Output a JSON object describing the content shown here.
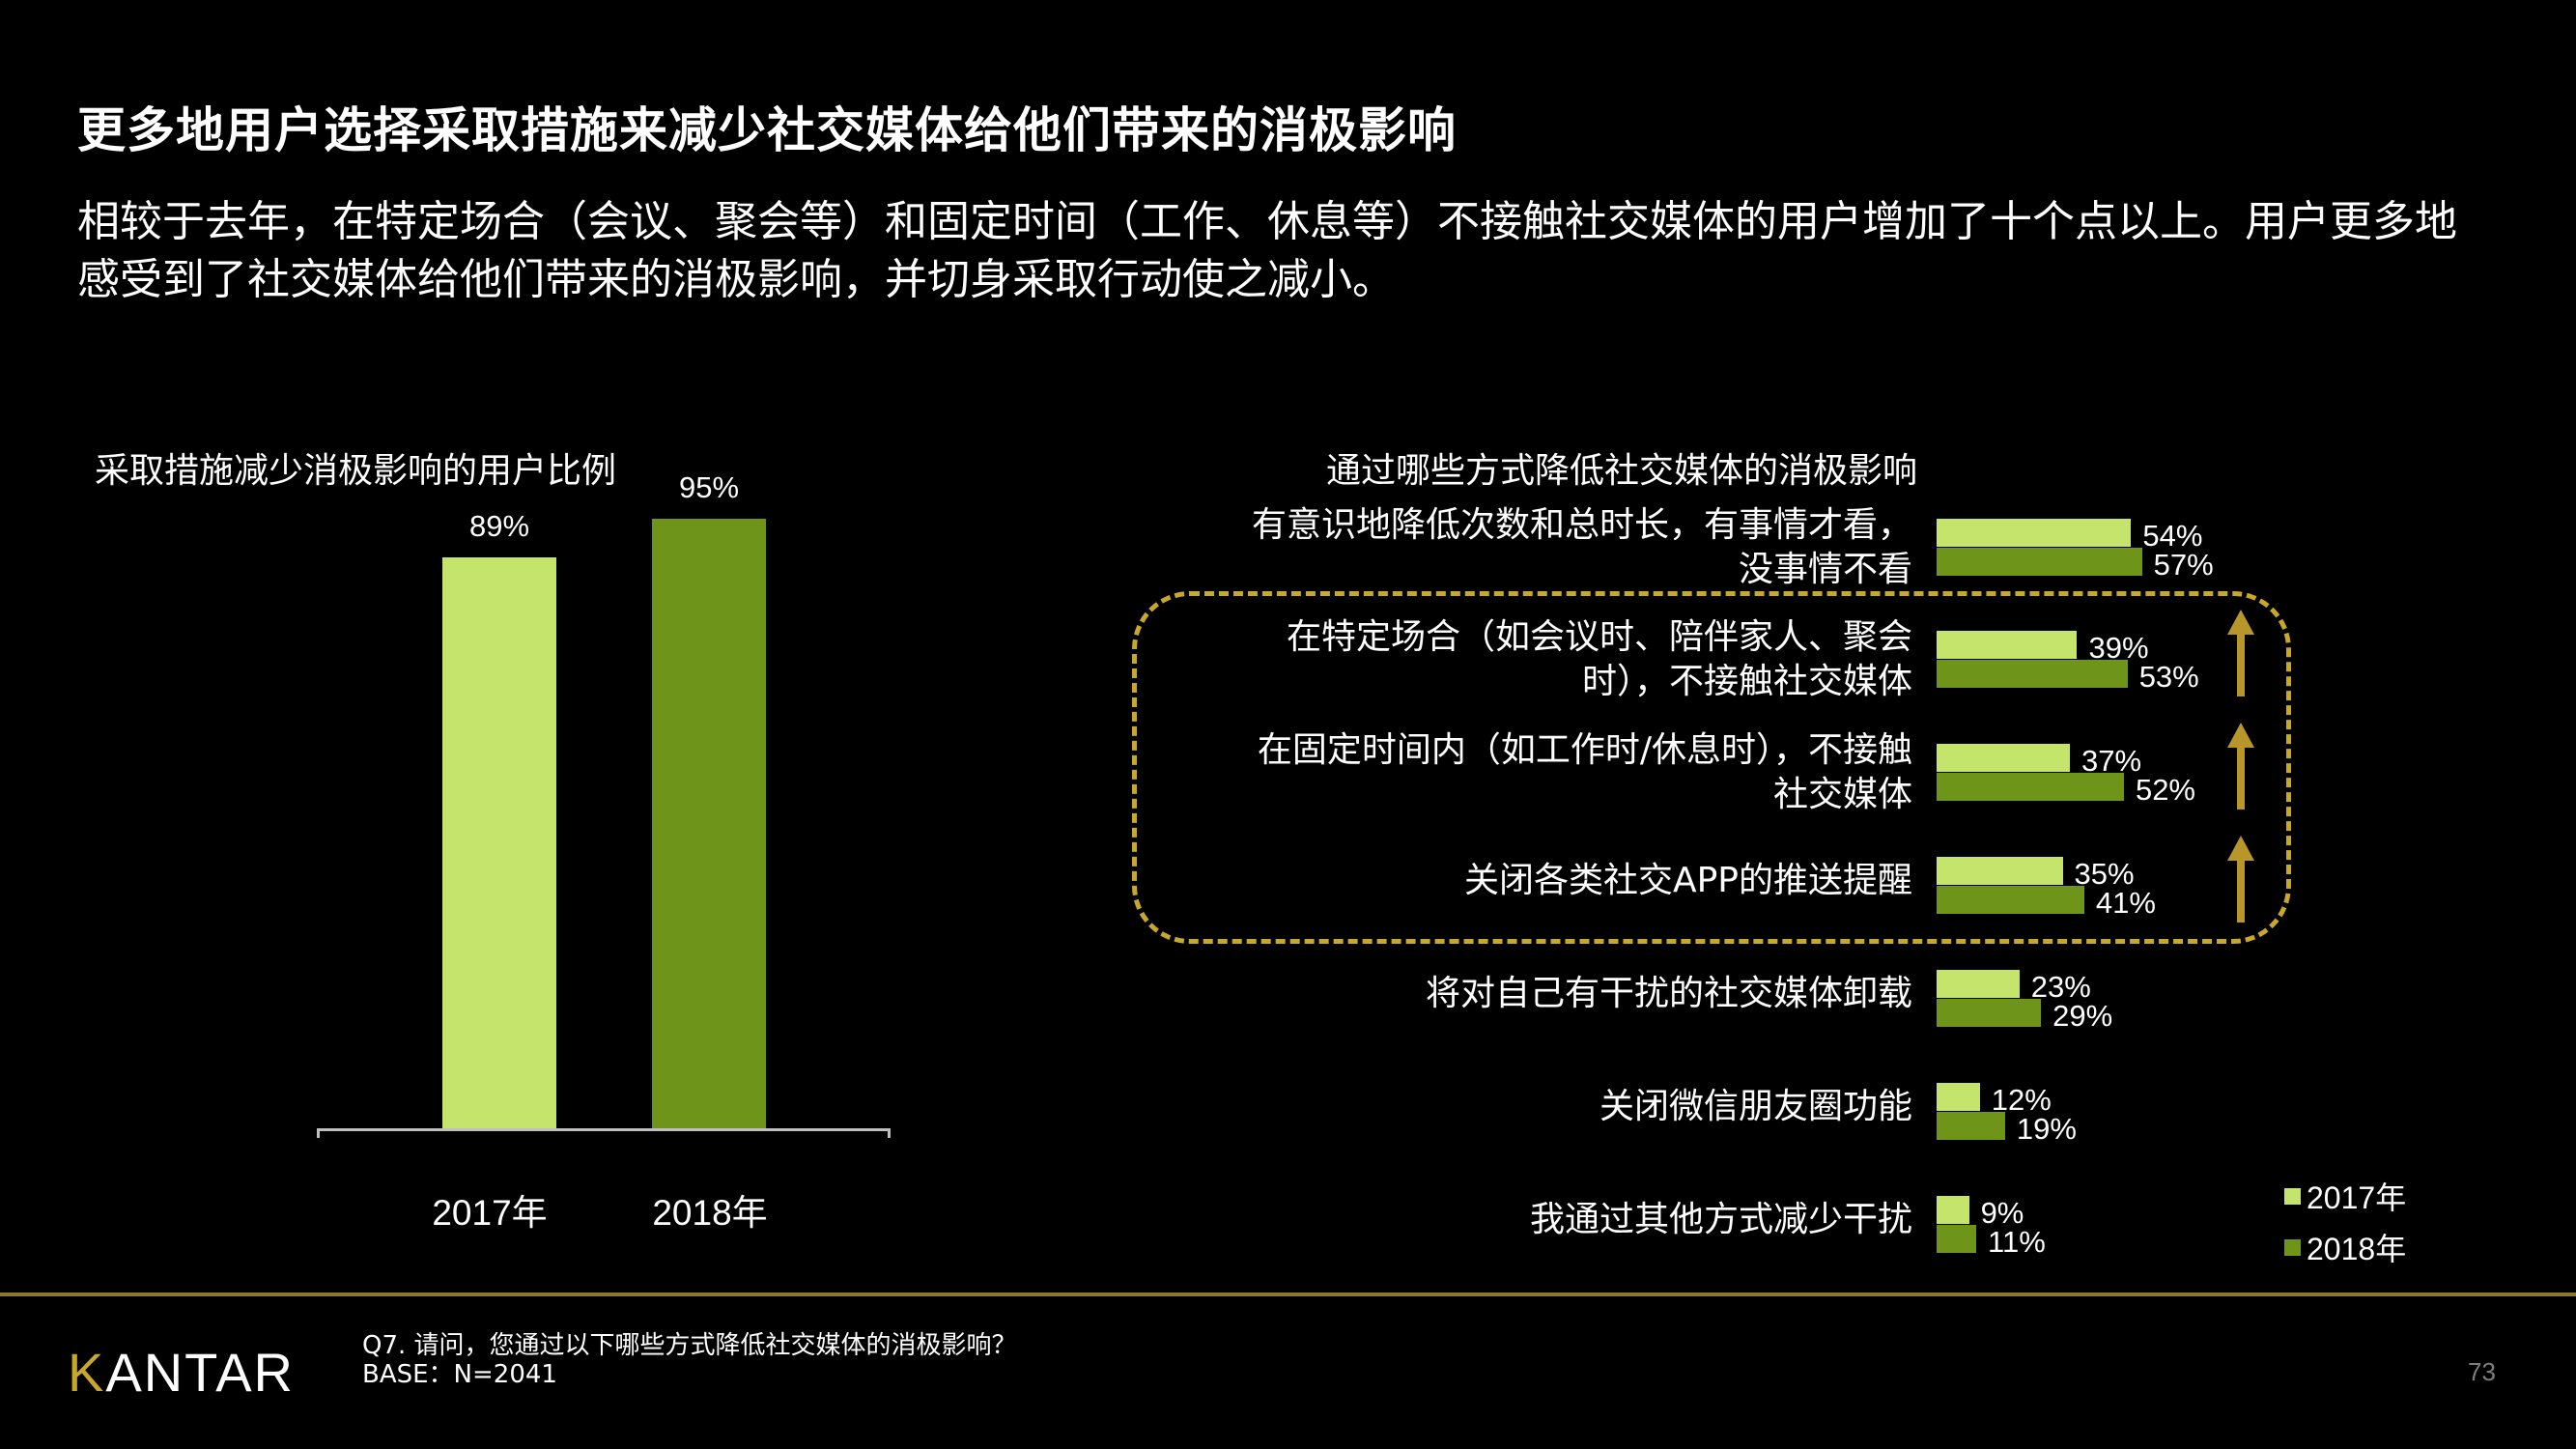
{
  "title": "更多地用户选择采取措施来减少社交媒体给他们带来的消极影响",
  "subtitle": "相较于去年，在特定场合（会议、聚会等）和固定时间（工作、休息等）不接触社交媒体的用户增加了十个点以上。用户更多地感受到了社交媒体给他们带来的消极影响，并切身采取行动使之减小。",
  "colors": {
    "background": "#000000",
    "series_2017": "#c5e46b",
    "series_2018": "#6e9419",
    "highlight_border": "#c8a82b",
    "arrow": "#b8962a"
  },
  "chart_data": [
    {
      "type": "bar",
      "title": "采取措施减少消极影响的用户比例",
      "categories": [
        "2017年",
        "2018年"
      ],
      "values": [
        89,
        95
      ],
      "value_labels": [
        "89%",
        "95%"
      ],
      "xlabel": "",
      "ylabel": "",
      "ylim": [
        0,
        100
      ],
      "grid": false,
      "legend": null
    },
    {
      "type": "bar",
      "orientation": "horizontal",
      "title": "通过哪些方式降低社交媒体的消极影响",
      "categories": [
        "有意识地降低次数和总时长，有事情才看，没事情不看",
        "在特定场合（如会议时、陪伴家人、聚会时），不接触社交媒体",
        "在固定时间内（如工作时/休息时），不接触社交媒体",
        "关闭各类社交APP的推送提醒",
        "将对自己有干扰的社交媒体卸载",
        "关闭微信朋友圈功能",
        "我通过其他方式减少干扰"
      ],
      "series": [
        {
          "name": "2017年",
          "values": [
            54,
            39,
            37,
            35,
            23,
            12,
            9
          ]
        },
        {
          "name": "2018年",
          "values": [
            57,
            53,
            52,
            41,
            29,
            19,
            11
          ]
        }
      ],
      "highlighted_categories": [
        1,
        2,
        3
      ],
      "annotation": "up arrows beside highlighted categories (dashed gold box)",
      "legend_position": "bottom-right",
      "xlim": [
        0,
        100
      ],
      "grid": false
    }
  ],
  "left_chart": {
    "title": "采取措施减少消极影响的用户比例",
    "bars": [
      {
        "category": "2017年",
        "value": 89,
        "label": "89%"
      },
      {
        "category": "2018年",
        "value": 95,
        "label": "95%"
      }
    ]
  },
  "right_chart": {
    "title": "通过哪些方式降低社交媒体的消极影响",
    "rows": [
      {
        "label_lines": [
          "有意识地降低次数和总时长，有事情才看，",
          "没事情不看"
        ],
        "v2017": 54,
        "v2018": 57,
        "l2017": "54%",
        "l2018": "57%",
        "arrow": false
      },
      {
        "label_lines": [
          "在特定场合（如会议时、陪伴家人、聚会",
          "时），不接触社交媒体"
        ],
        "v2017": 39,
        "v2018": 53,
        "l2017": "39%",
        "l2018": "53%",
        "arrow": true
      },
      {
        "label_lines": [
          "在固定时间内（如工作时/休息时），不接触",
          "社交媒体"
        ],
        "v2017": 37,
        "v2018": 52,
        "l2017": "37%",
        "l2018": "52%",
        "arrow": true
      },
      {
        "label_lines": [
          "关闭各类社交APP的推送提醒"
        ],
        "v2017": 35,
        "v2018": 41,
        "l2017": "35%",
        "l2018": "41%",
        "arrow": true
      },
      {
        "label_lines": [
          "将对自己有干扰的社交媒体卸载"
        ],
        "v2017": 23,
        "v2018": 29,
        "l2017": "23%",
        "l2018": "29%",
        "arrow": false
      },
      {
        "label_lines": [
          "关闭微信朋友圈功能"
        ],
        "v2017": 12,
        "v2018": 19,
        "l2017": "12%",
        "l2018": "19%",
        "arrow": false
      },
      {
        "label_lines": [
          "我通过其他方式减少干扰"
        ],
        "v2017": 9,
        "v2018": 11,
        "l2017": "9%",
        "l2018": "11%",
        "arrow": false
      }
    ],
    "legend": [
      "2017年",
      "2018年"
    ]
  },
  "footer": {
    "logo": "KANTAR",
    "note_line1": "Q7. 请问，您通过以下哪些方式降低社交媒体的消极影响？",
    "note_line2": "BASE：N=2041",
    "page_number": "73"
  }
}
